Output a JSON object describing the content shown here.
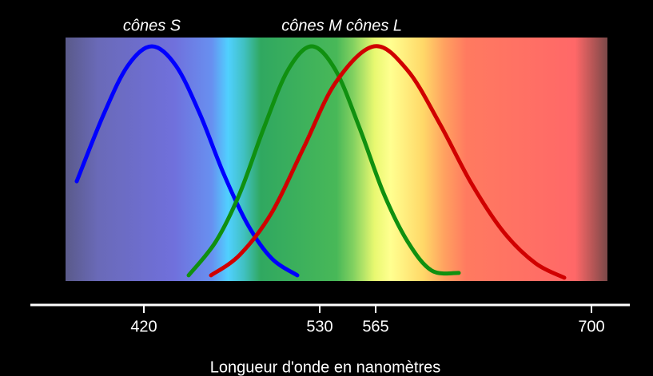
{
  "chart_data": {
    "type": "line",
    "xlabel": "Longueur d'onde en nanomètres",
    "xlim": [
      349,
      724
    ],
    "xticks": [
      420,
      530,
      565,
      700
    ],
    "ylim": [
      0,
      1
    ],
    "series": [
      {
        "name": "cônes S",
        "color": "#0000ff",
        "x": [
          378,
          395,
          410,
          425,
          440,
          455,
          470,
          485,
          500,
          516
        ],
        "values": [
          0.44,
          0.72,
          0.92,
          1,
          0.92,
          0.72,
          0.47,
          0.26,
          0.12,
          0.05
        ]
      },
      {
        "name": "cônes M",
        "color": "#109010",
        "x": [
          448,
          465,
          480,
          495,
          510,
          525,
          540,
          555,
          570,
          585,
          600,
          617
        ],
        "values": [
          0.05,
          0.19,
          0.39,
          0.66,
          0.9,
          1,
          0.9,
          0.66,
          0.39,
          0.19,
          0.07,
          0.06
        ]
      },
      {
        "name": "cônes L",
        "color": "#d00000",
        "x": [
          462,
          480,
          500,
          520,
          540,
          564,
          585,
          605,
          625,
          645,
          665,
          683
        ],
        "values": [
          0.05,
          0.135,
          0.31,
          0.58,
          0.85,
          1,
          0.9,
          0.68,
          0.43,
          0.23,
          0.1,
          0.04
        ]
      }
    ]
  }
}
